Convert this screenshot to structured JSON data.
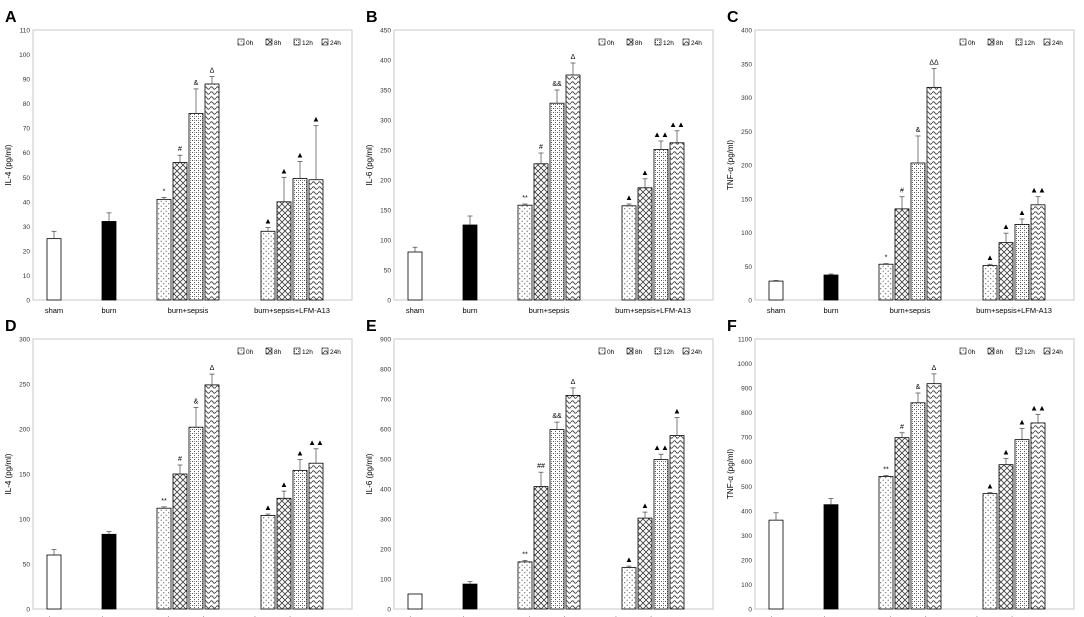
{
  "legend": [
    "0h",
    "8h",
    "12h",
    "24h"
  ],
  "chart_data": [
    {
      "type": "bar",
      "letter": "A",
      "ylabel": "IL-4 (pg/ml)",
      "ylim": [
        0,
        110
      ],
      "yticks": [
        0,
        10,
        20,
        30,
        40,
        50,
        60,
        70,
        80,
        90,
        100,
        110
      ],
      "groups": [
        "sham",
        "burn",
        "burn+sepsis",
        "burn+sepsis+LFM-A13"
      ],
      "sham": {
        "value": 25,
        "err": 3
      },
      "burn": {
        "value": 32,
        "err": 3.5
      },
      "series": [
        {
          "name": "0h",
          "values": [
            41,
            28
          ],
          "errors": [
            0.8,
            1.5
          ],
          "marks": [
            "*",
            "▲"
          ]
        },
        {
          "name": "8h",
          "values": [
            56,
            40
          ],
          "errors": [
            3,
            10
          ],
          "marks": [
            "#",
            "▲"
          ]
        },
        {
          "name": "12h",
          "values": [
            76,
            49.5
          ],
          "errors": [
            10,
            7
          ],
          "marks": [
            "&",
            "▲"
          ]
        },
        {
          "name": "24h",
          "values": [
            88,
            49
          ],
          "errors": [
            3,
            22
          ],
          "marks": [
            "Δ",
            "▲"
          ]
        }
      ]
    },
    {
      "type": "bar",
      "letter": "B",
      "ylabel": "IL-6 (pg/ml)",
      "ylim": [
        0,
        450
      ],
      "yticks": [
        0,
        50,
        100,
        150,
        200,
        250,
        300,
        350,
        400,
        450
      ],
      "groups": [
        "sham",
        "burn",
        "burn+sepsis",
        "burn+sepsis+LFM-A13"
      ],
      "sham": {
        "value": 80,
        "err": 8
      },
      "burn": {
        "value": 125,
        "err": 15
      },
      "series": [
        {
          "name": "0h",
          "values": [
            158,
            157
          ],
          "errors": [
            2,
            3
          ],
          "marks": [
            "**",
            "▲"
          ]
        },
        {
          "name": "8h",
          "values": [
            227,
            187
          ],
          "errors": [
            18,
            15
          ],
          "marks": [
            "#",
            "▲"
          ]
        },
        {
          "name": "12h",
          "values": [
            328,
            251
          ],
          "errors": [
            22,
            14
          ],
          "marks": [
            "&&",
            "▲▲"
          ]
        },
        {
          "name": "24h",
          "values": [
            375,
            262
          ],
          "errors": [
            20,
            20
          ],
          "marks": [
            "Δ",
            "▲▲"
          ]
        }
      ]
    },
    {
      "type": "bar",
      "letter": "C",
      "ylabel": "TNF-α (pg/ml)",
      "ylim": [
        0,
        400
      ],
      "yticks": [
        0,
        50,
        100,
        150,
        200,
        250,
        300,
        350,
        400
      ],
      "groups": [
        "sham",
        "burn",
        "burn+sepsis",
        "burn+sepsis+LFM-A13"
      ],
      "sham": {
        "value": 28,
        "err": 1
      },
      "burn": {
        "value": 37,
        "err": 1.5
      },
      "series": [
        {
          "name": "0h",
          "values": [
            53,
            51
          ],
          "errors": [
            1,
            2
          ],
          "marks": [
            "*",
            "▲"
          ]
        },
        {
          "name": "8h",
          "values": [
            135,
            85
          ],
          "errors": [
            18,
            14
          ],
          "marks": [
            "#",
            "▲"
          ]
        },
        {
          "name": "12h",
          "values": [
            203,
            112
          ],
          "errors": [
            40,
            8
          ],
          "marks": [
            "&",
            "▲"
          ]
        },
        {
          "name": "24h",
          "values": [
            315,
            141
          ],
          "errors": [
            28,
            12
          ],
          "marks": [
            "ΔΔ",
            "▲▲"
          ]
        }
      ]
    },
    {
      "type": "bar",
      "letter": "D",
      "ylabel": "IL-4 (pg/ml)",
      "ylim": [
        0,
        300
      ],
      "yticks": [
        0,
        50,
        100,
        150,
        200,
        250,
        300
      ],
      "groups": [
        "sham",
        "burn",
        "burn+sepsis",
        "burn+sepsis+LFM-A13"
      ],
      "sham": {
        "value": 60,
        "err": 6
      },
      "burn": {
        "value": 83,
        "err": 3
      },
      "series": [
        {
          "name": "0h",
          "values": [
            112,
            104
          ],
          "errors": [
            1.5,
            1.5
          ],
          "marks": [
            "**",
            "▲"
          ]
        },
        {
          "name": "8h",
          "values": [
            150,
            123
          ],
          "errors": [
            10,
            8
          ],
          "marks": [
            "#",
            "▲"
          ]
        },
        {
          "name": "12h",
          "values": [
            202,
            154
          ],
          "errors": [
            22,
            12
          ],
          "marks": [
            "&",
            "▲"
          ]
        },
        {
          "name": "24h",
          "values": [
            249,
            162
          ],
          "errors": [
            12,
            16
          ],
          "marks": [
            "Δ",
            "▲▲"
          ]
        }
      ]
    },
    {
      "type": "bar",
      "letter": "E",
      "ylabel": "IL-6 (pg/ml)",
      "ylim": [
        0,
        900
      ],
      "yticks": [
        0,
        100,
        200,
        300,
        400,
        500,
        600,
        700,
        800,
        900
      ],
      "groups": [
        "sham",
        "burn",
        "burn+sepsis",
        "burn+sepsis+LFM-A13"
      ],
      "sham": {
        "value": 50,
        "err": 0
      },
      "burn": {
        "value": 83,
        "err": 8
      },
      "series": [
        {
          "name": "0h",
          "values": [
            157,
            138
          ],
          "errors": [
            5,
            5
          ],
          "marks": [
            "**",
            "▲"
          ]
        },
        {
          "name": "8h",
          "values": [
            408,
            303
          ],
          "errors": [
            48,
            20
          ],
          "marks": [
            "##",
            "▲"
          ]
        },
        {
          "name": "12h",
          "values": [
            598,
            498
          ],
          "errors": [
            25,
            18
          ],
          "marks": [
            "&&",
            "▲▲"
          ]
        },
        {
          "name": "24h",
          "values": [
            712,
            578
          ],
          "errors": [
            25,
            60
          ],
          "marks": [
            "Δ",
            "▲"
          ]
        }
      ]
    },
    {
      "type": "bar",
      "letter": "F",
      "ylabel": "TNF-α (pg/ml)",
      "ylim": [
        0,
        1100
      ],
      "yticks": [
        0,
        100,
        200,
        300,
        400,
        500,
        600,
        700,
        800,
        900,
        1000,
        1100
      ],
      "groups": [
        "sham",
        "burn",
        "burn+sepsis",
        "burn+sepsis+LFM-A13"
      ],
      "sham": {
        "value": 362,
        "err": 30
      },
      "burn": {
        "value": 425,
        "err": 25
      },
      "series": [
        {
          "name": "0h",
          "values": [
            540,
            470
          ],
          "errors": [
            4,
            4
          ],
          "marks": [
            "**",
            "▲"
          ]
        },
        {
          "name": "8h",
          "values": [
            698,
            588
          ],
          "errors": [
            20,
            25
          ],
          "marks": [
            "#",
            "▲"
          ]
        },
        {
          "name": "12h",
          "values": [
            840,
            690
          ],
          "errors": [
            40,
            45
          ],
          "marks": [
            "&",
            "▲"
          ]
        },
        {
          "name": "24h",
          "values": [
            918,
            758
          ],
          "errors": [
            40,
            35
          ],
          "marks": [
            "Δ",
            "▲▲"
          ]
        }
      ]
    }
  ]
}
